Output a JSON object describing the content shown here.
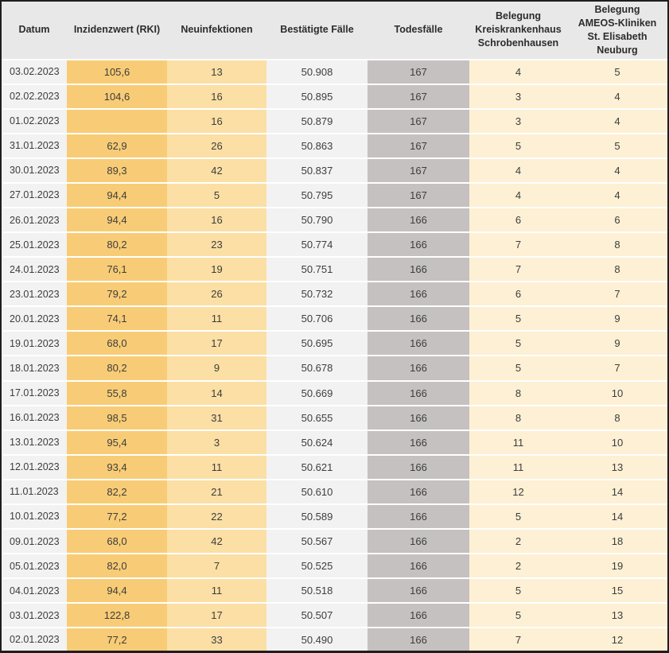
{
  "chart_data": {
    "type": "table",
    "columns": [
      {
        "key": "datum",
        "label": "Datum"
      },
      {
        "key": "inzidenzwert",
        "label": "Inzidenzwert (RKI)"
      },
      {
        "key": "neuinfektionen",
        "label": "Neuinfektionen"
      },
      {
        "key": "bestaetigte_faelle",
        "label": "Bestätigte Fälle"
      },
      {
        "key": "todesfaelle",
        "label": "Todesfälle"
      },
      {
        "key": "belegung_kkh",
        "label": "Belegung\nKreiskrankenhaus\nSchrobenhausen"
      },
      {
        "key": "belegung_ameos",
        "label": "Belegung\nAMEOS-Kliniken\nSt. Elisabeth\nNeuburg"
      }
    ],
    "rows": [
      [
        "03.02.2023",
        "105,6",
        "13",
        "50.908",
        "167",
        "4",
        "5"
      ],
      [
        "02.02.2023",
        "104,6",
        "16",
        "50.895",
        "167",
        "3",
        "4"
      ],
      [
        "01.02.2023",
        "",
        "16",
        "50.879",
        "167",
        "3",
        "4"
      ],
      [
        "31.01.2023",
        "62,9",
        "26",
        "50.863",
        "167",
        "5",
        "5"
      ],
      [
        "30.01.2023",
        "89,3",
        "42",
        "50.837",
        "167",
        "4",
        "4"
      ],
      [
        "27.01.2023",
        "94,4",
        "5",
        "50.795",
        "167",
        "4",
        "4"
      ],
      [
        "26.01.2023",
        "94,4",
        "16",
        "50.790",
        "166",
        "6",
        "6"
      ],
      [
        "25.01.2023",
        "80,2",
        "23",
        "50.774",
        "166",
        "7",
        "8"
      ],
      [
        "24.01.2023",
        "76,1",
        "19",
        "50.751",
        "166",
        "7",
        "8"
      ],
      [
        "23.01.2023",
        "79,2",
        "26",
        "50.732",
        "166",
        "6",
        "7"
      ],
      [
        "20.01.2023",
        "74,1",
        "11",
        "50.706",
        "166",
        "5",
        "9"
      ],
      [
        "19.01.2023",
        "68,0",
        "17",
        "50.695",
        "166",
        "5",
        "9"
      ],
      [
        "18.01.2023",
        "80,2",
        "9",
        "50.678",
        "166",
        "5",
        "7"
      ],
      [
        "17.01.2023",
        "55,8",
        "14",
        "50.669",
        "166",
        "8",
        "10"
      ],
      [
        "16.01.2023",
        "98,5",
        "31",
        "50.655",
        "166",
        "8",
        "8"
      ],
      [
        "13.01.2023",
        "95,4",
        "3",
        "50.624",
        "166",
        "11",
        "10"
      ],
      [
        "12.01.2023",
        "93,4",
        "11",
        "50.621",
        "166",
        "11",
        "13"
      ],
      [
        "11.01.2023",
        "82,2",
        "21",
        "50.610",
        "166",
        "12",
        "14"
      ],
      [
        "10.01.2023",
        "77,2",
        "22",
        "50.589",
        "166",
        "5",
        "14"
      ],
      [
        "09.01.2023",
        "68,0",
        "42",
        "50.567",
        "166",
        "2",
        "18"
      ],
      [
        "05.01.2023",
        "82,0",
        "7",
        "50.525",
        "166",
        "2",
        "19"
      ],
      [
        "04.01.2023",
        "94,4",
        "11",
        "50.518",
        "166",
        "5",
        "15"
      ],
      [
        "03.01.2023",
        "122,8",
        "17",
        "50.507",
        "166",
        "5",
        "13"
      ],
      [
        "02.01.2023",
        "77,2",
        "33",
        "50.490",
        "166",
        "7",
        "12"
      ]
    ],
    "layout": {
      "grid": "horizontal-white-row-separators",
      "legend": "none"
    },
    "colors": {
      "frame_border": "#1e1e1e",
      "header_bg": "#e8e8e8",
      "neutral_cell_bg": "#f2f2f2",
      "inzidenzwert_bg": "#f8cc76",
      "neuinfektionen_bg": "#fbdfa4",
      "todesfaelle_bg": "#c5c1c1",
      "belegung_bg": "#fdf0d4",
      "row_separator": "#ffffff",
      "text": "#3d3d3d"
    }
  }
}
